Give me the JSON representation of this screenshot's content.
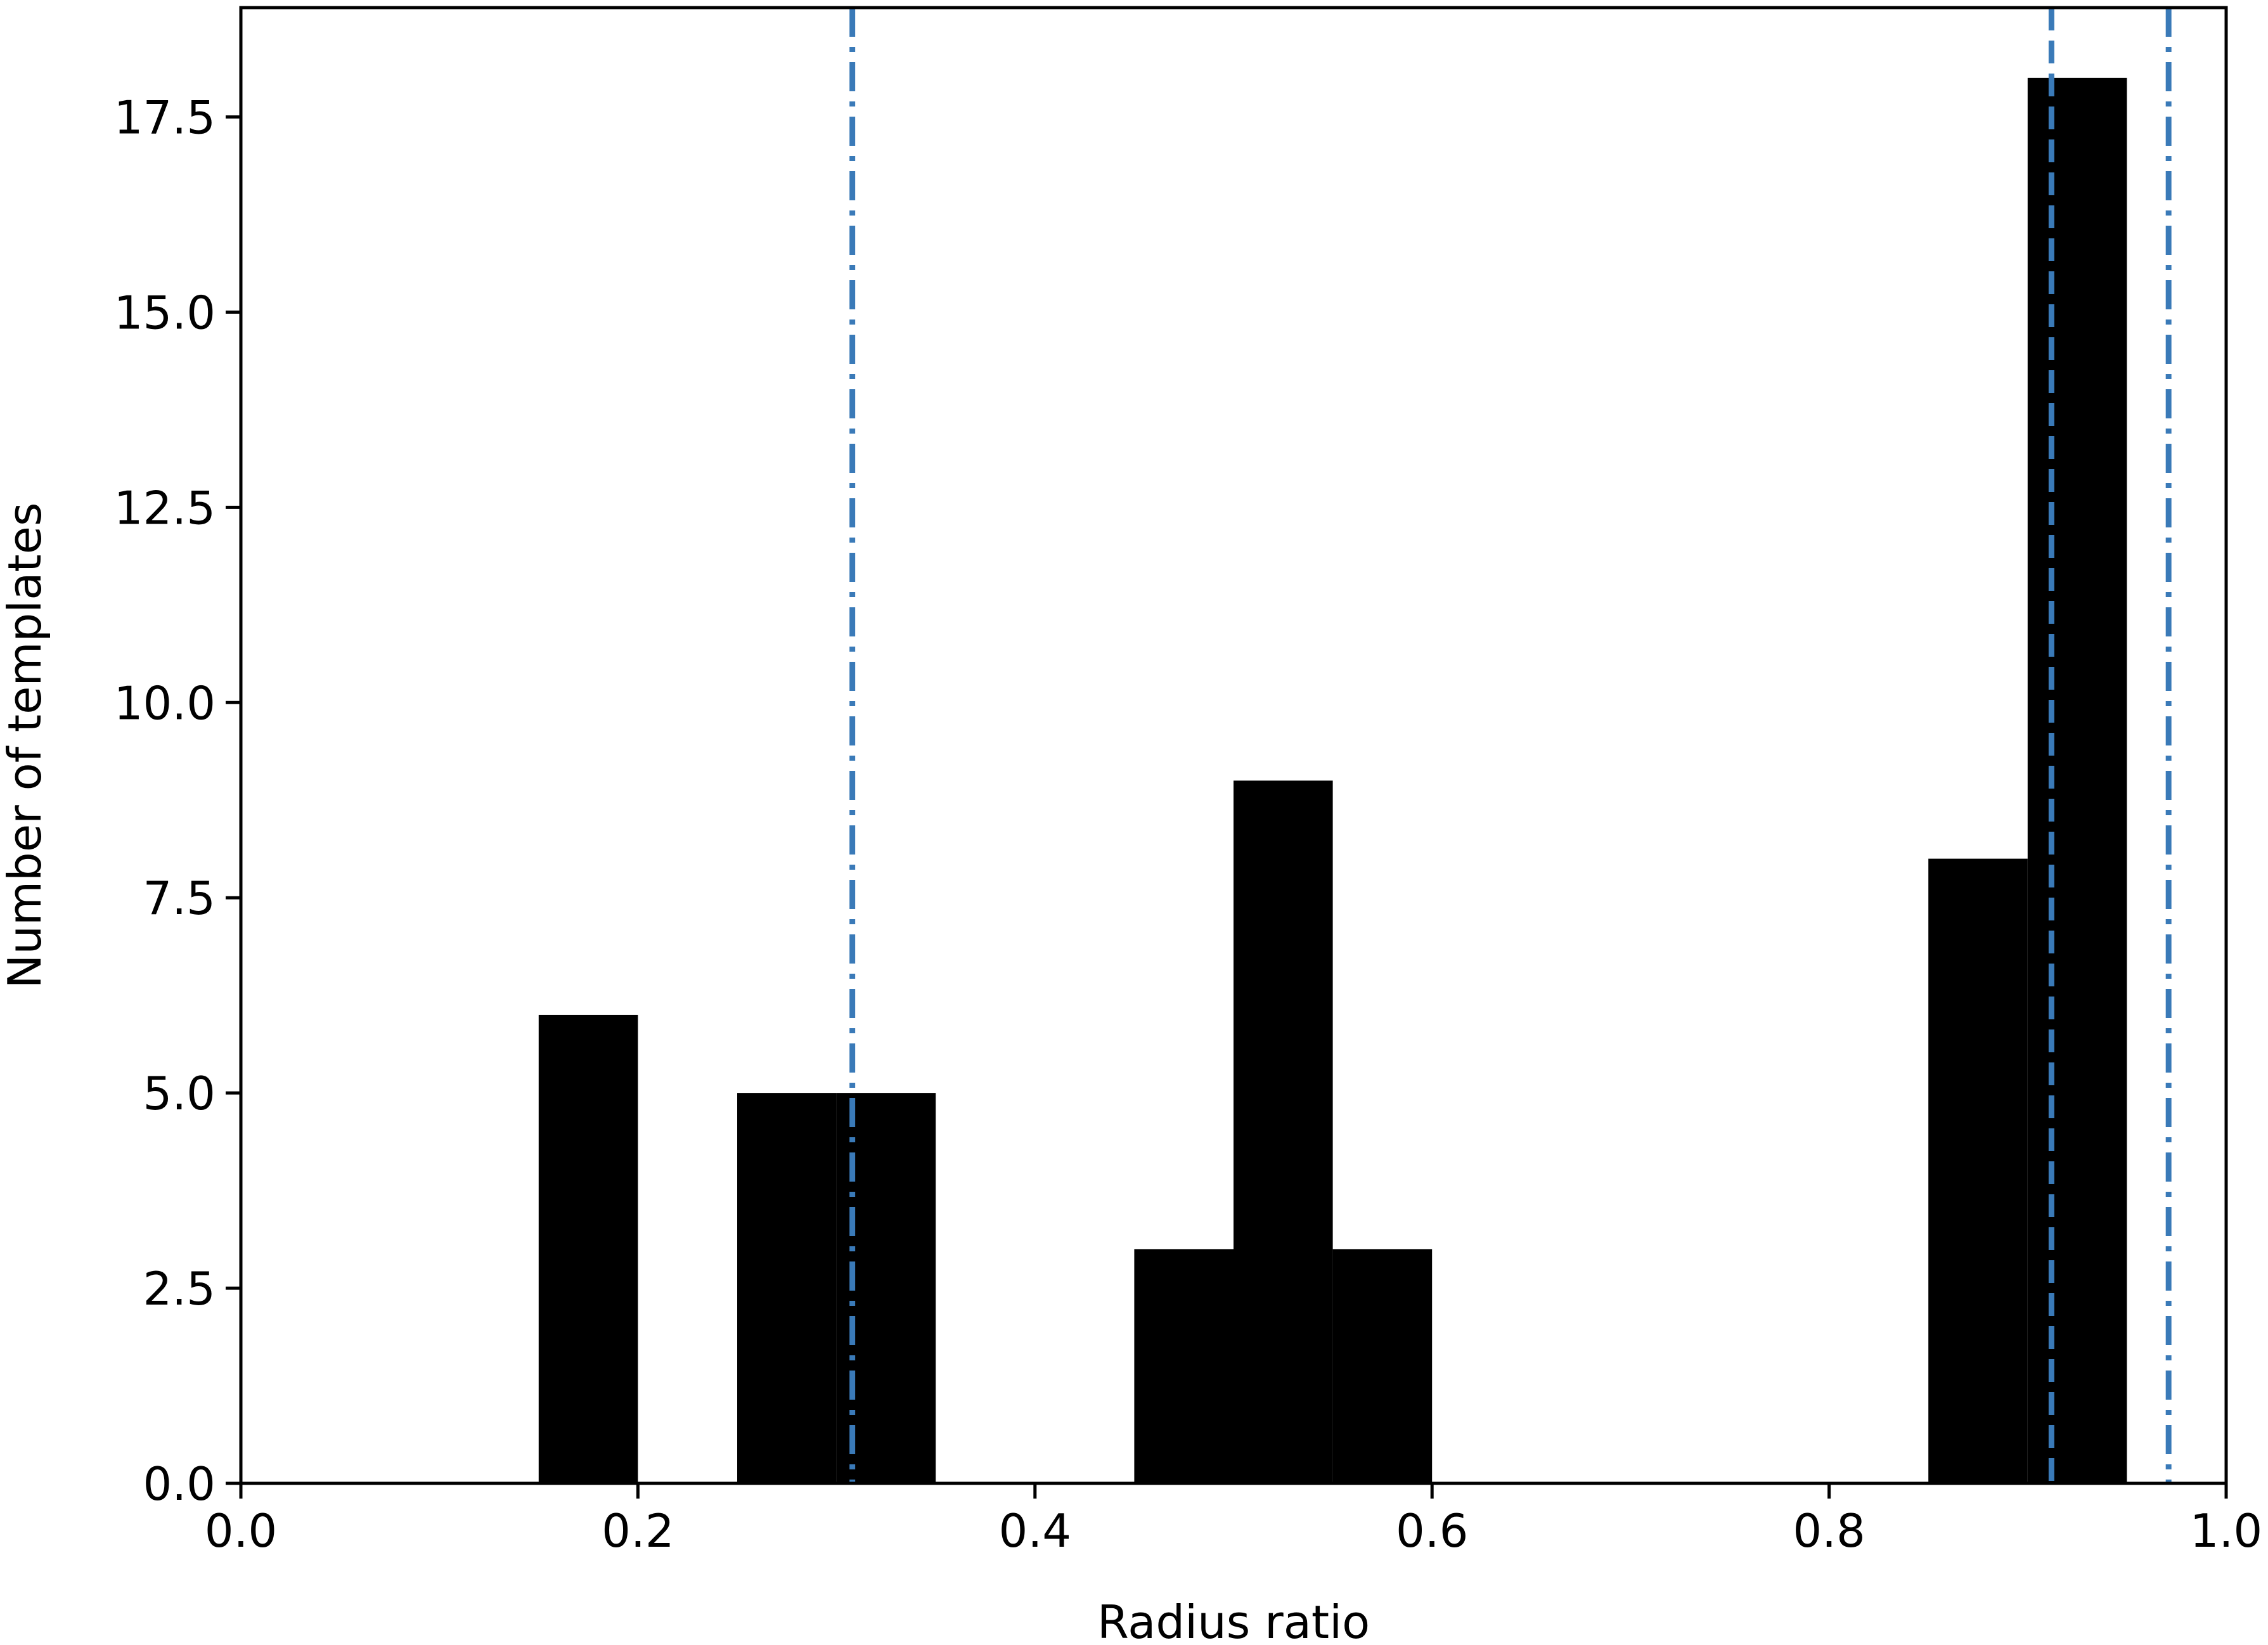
{
  "chart_data": {
    "type": "bar",
    "title": "",
    "xlabel": "Radius ratio",
    "ylabel": "Number of templates",
    "xlim": [
      0.0,
      1.0
    ],
    "ylim": [
      0.0,
      18.9
    ],
    "grid": false,
    "legend": "none",
    "bar_color": "#000000",
    "bin_width": 0.05,
    "bins": [
      {
        "x_start": 0.15,
        "x_end": 0.2,
        "value": 6
      },
      {
        "x_start": 0.25,
        "x_end": 0.3,
        "value": 5
      },
      {
        "x_start": 0.3,
        "x_end": 0.35,
        "value": 5
      },
      {
        "x_start": 0.45,
        "x_end": 0.5,
        "value": 3
      },
      {
        "x_start": 0.5,
        "x_end": 0.55,
        "value": 9
      },
      {
        "x_start": 0.55,
        "x_end": 0.6,
        "value": 3
      },
      {
        "x_start": 0.85,
        "x_end": 0.9,
        "value": 8
      },
      {
        "x_start": 0.9,
        "x_end": 0.95,
        "value": 18
      }
    ],
    "reference_lines": [
      {
        "x": 0.308,
        "style": "dashdot",
        "color": "#3a7ab8"
      },
      {
        "x": 0.912,
        "style": "dashed",
        "color": "#3a7ab8"
      },
      {
        "x": 0.971,
        "style": "dashdot",
        "color": "#3a7ab8"
      }
    ],
    "x_ticks": [
      {
        "value": 0.0,
        "label": "0.0"
      },
      {
        "value": 0.2,
        "label": "0.2"
      },
      {
        "value": 0.4,
        "label": "0.4"
      },
      {
        "value": 0.6,
        "label": "0.6"
      },
      {
        "value": 0.8,
        "label": "0.8"
      },
      {
        "value": 1.0,
        "label": "1.0"
      }
    ],
    "y_ticks": [
      {
        "value": 0.0,
        "label": "0.0"
      },
      {
        "value": 2.5,
        "label": "2.5"
      },
      {
        "value": 5.0,
        "label": "5.0"
      },
      {
        "value": 7.5,
        "label": "7.5"
      },
      {
        "value": 10.0,
        "label": "10.0"
      },
      {
        "value": 12.5,
        "label": "12.5"
      },
      {
        "value": 15.0,
        "label": "15.0"
      },
      {
        "value": 17.5,
        "label": "17.5"
      }
    ]
  }
}
